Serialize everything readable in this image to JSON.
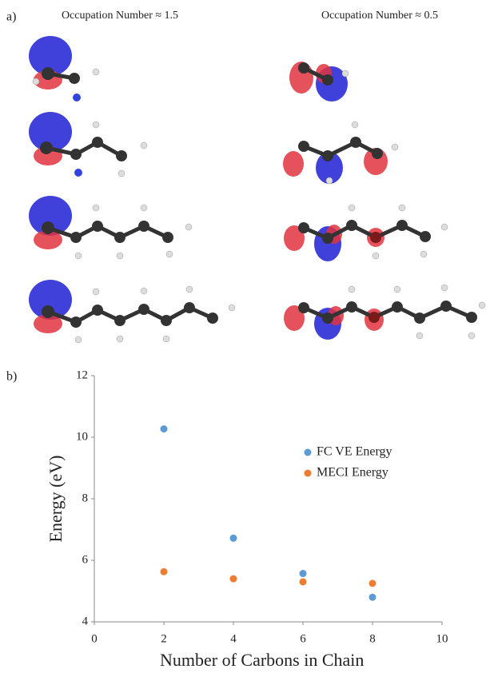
{
  "panel_a": {
    "label": "a)",
    "column_titles": [
      "Occupation Number ≈ 1.5",
      "Occupation Number ≈ 0.5"
    ]
  },
  "panel_b_label": "b)",
  "chart_data": {
    "type": "scatter",
    "x_label": "Number of Carbons in Chain",
    "y_label": "Energy (eV)",
    "x": [
      2,
      4,
      6,
      8
    ],
    "series": [
      {
        "name": "FC VE Energy",
        "color": "#5b9bd5",
        "values": [
          10.27,
          6.72,
          5.57,
          4.8
        ]
      },
      {
        "name": "MECI Energy",
        "color": "#ed7d31",
        "values": [
          5.63,
          5.4,
          5.3,
          5.25
        ]
      }
    ],
    "xlim": [
      0,
      10
    ],
    "xticks": [
      0,
      2,
      4,
      6,
      8,
      10
    ],
    "ylim": [
      4,
      12
    ],
    "yticks": [
      4,
      6,
      8,
      10,
      12
    ],
    "grid": false
  }
}
